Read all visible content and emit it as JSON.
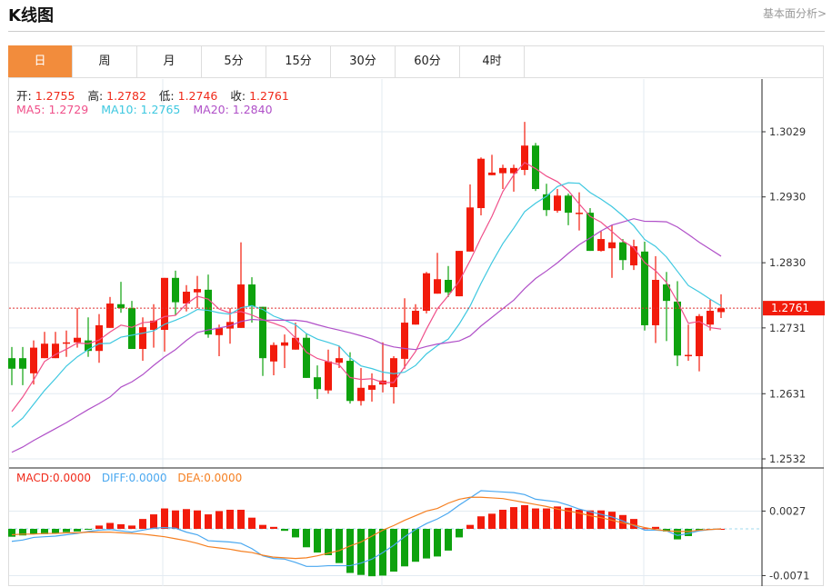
{
  "header": {
    "title": "K线图",
    "link": "基本面分析>"
  },
  "tabs": [
    {
      "label": "日",
      "active": true
    },
    {
      "label": "周"
    },
    {
      "label": "月"
    },
    {
      "label": "5分"
    },
    {
      "label": "15分"
    },
    {
      "label": "30分"
    },
    {
      "label": "60分"
    },
    {
      "label": "4时"
    }
  ],
  "ohlc_info": {
    "open_label": "开:",
    "open": "1.2755",
    "high_label": "高:",
    "high": "1.2782",
    "low_label": "低:",
    "low": "1.2746",
    "close_label": "收:",
    "close": "1.2761"
  },
  "ma_info": {
    "ma5": "MA5: 1.2729",
    "ma10": "MA10: 1.2765",
    "ma20": "MA20: 1.2840"
  },
  "macd_info": {
    "macd": "MACD:0.0000",
    "diff": "DIFF:0.0000",
    "dea": "DEA:0.0000"
  },
  "colors": {
    "up": "#f21b0b",
    "down": "#0ea20e",
    "ma5": "#f0508a",
    "ma10": "#3ec8e0",
    "ma20": "#b050c8",
    "diff": "#4aa8f0",
    "dea": "#f57f20",
    "accent": "#f28c3c"
  },
  "chart_data": [
    {
      "type": "candlestick",
      "y_ticks": [
        "1.3029",
        "1.2930",
        "1.2830",
        "1.2731",
        "1.2631",
        "1.2532"
      ],
      "ylim": [
        1.2532,
        1.3029
      ],
      "current_price": "1.2761",
      "grid": true,
      "candles": [
        [
          1.2685,
          1.2702,
          1.2644,
          1.2669
        ],
        [
          1.2685,
          1.2702,
          1.2644,
          1.2669
        ],
        [
          1.2662,
          1.2712,
          1.2645,
          1.2701
        ],
        [
          1.2685,
          1.2725,
          1.2685,
          1.2707
        ],
        [
          1.2685,
          1.2725,
          1.2685,
          1.2707
        ],
        [
          1.2707,
          1.2727,
          1.2687,
          1.2709
        ],
        [
          1.2709,
          1.2761,
          1.2701,
          1.2716
        ],
        [
          1.2712,
          1.2747,
          1.2687,
          1.2696
        ],
        [
          1.2696,
          1.2752,
          1.2678,
          1.2735
        ],
        [
          1.2731,
          1.2778,
          1.2731,
          1.2768
        ],
        [
          1.2767,
          1.2801,
          1.2754,
          1.2761
        ],
        [
          1.2761,
          1.2772,
          1.2699,
          1.2699
        ],
        [
          1.2699,
          1.2747,
          1.2681,
          1.2732
        ],
        [
          1.2728,
          1.2767,
          1.2701,
          1.2742
        ],
        [
          1.2728,
          1.2807,
          1.2695,
          1.2807
        ],
        [
          1.2807,
          1.2818,
          1.275,
          1.277
        ],
        [
          1.2768,
          1.2796,
          1.2756,
          1.2786
        ],
        [
          1.2785,
          1.281,
          1.2761,
          1.279
        ],
        [
          1.2789,
          1.2812,
          1.2716,
          1.2721
        ],
        [
          1.272,
          1.2736,
          1.2688,
          1.2731
        ],
        [
          1.273,
          1.2761,
          1.2707,
          1.274
        ],
        [
          1.2731,
          1.2861,
          1.2731,
          1.2797
        ],
        [
          1.2797,
          1.2808,
          1.2739,
          1.2764
        ],
        [
          1.2763,
          1.2763,
          1.2658,
          1.2685
        ],
        [
          1.268,
          1.2709,
          1.2659,
          1.2705
        ],
        [
          1.2704,
          1.2721,
          1.267,
          1.2709
        ],
        [
          1.2698,
          1.2739,
          1.2698,
          1.2716
        ],
        [
          1.2716,
          1.2722,
          1.2655,
          1.2655
        ],
        [
          1.2656,
          1.2674,
          1.2623,
          1.2638
        ],
        [
          1.2636,
          1.2698,
          1.2631,
          1.268
        ],
        [
          1.2678,
          1.2704,
          1.267,
          1.2685
        ],
        [
          1.2681,
          1.2694,
          1.2616,
          1.262
        ],
        [
          1.262,
          1.267,
          1.2613,
          1.264
        ],
        [
          1.2637,
          1.2662,
          1.2619,
          1.2644
        ],
        [
          1.2645,
          1.2709,
          1.2633,
          1.2651
        ],
        [
          1.2641,
          1.2688,
          1.2616,
          1.2685
        ],
        [
          1.2684,
          1.2776,
          1.2669,
          1.2739
        ],
        [
          1.2736,
          1.2767,
          1.2736,
          1.2757
        ],
        [
          1.2757,
          1.2816,
          1.2753,
          1.2814
        ],
        [
          1.2783,
          1.2845,
          1.2783,
          1.2805
        ],
        [
          1.2804,
          1.2825,
          1.2778,
          1.2785
        ],
        [
          1.2779,
          1.2848,
          1.2779,
          1.2848
        ],
        [
          1.2847,
          1.2949,
          1.2847,
          1.2914
        ],
        [
          1.2913,
          1.299,
          1.2902,
          1.2988
        ],
        [
          1.2963,
          1.2994,
          1.2963,
          1.2967
        ],
        [
          1.2966,
          1.2979,
          1.2942,
          1.2974
        ],
        [
          1.2966,
          1.2979,
          1.2938,
          1.2974
        ],
        [
          1.2971,
          1.3044,
          1.2963,
          1.3008
        ],
        [
          1.3008,
          1.3012,
          1.2939,
          1.2942
        ],
        [
          1.2934,
          1.295,
          1.2901,
          1.291
        ],
        [
          1.2909,
          1.2942,
          1.2906,
          1.2932
        ],
        [
          1.2932,
          1.2935,
          1.2887,
          1.2906
        ],
        [
          1.2905,
          1.2937,
          1.2879,
          1.2906
        ],
        [
          1.2906,
          1.2913,
          1.2848,
          1.2848
        ],
        [
          1.2848,
          1.2879,
          1.2847,
          1.2866
        ],
        [
          1.2852,
          1.2887,
          1.2807,
          1.2861
        ],
        [
          1.2861,
          1.2866,
          1.2819,
          1.2834
        ],
        [
          1.2826,
          1.2865,
          1.2819,
          1.2855
        ],
        [
          1.2847,
          1.2862,
          1.2727,
          1.2735
        ],
        [
          1.2735,
          1.284,
          1.2708,
          1.2804
        ],
        [
          1.2797,
          1.2816,
          1.2711,
          1.2772
        ],
        [
          1.2771,
          1.2802,
          1.2673,
          1.2689
        ],
        [
          1.2689,
          1.2736,
          1.2681,
          1.269
        ],
        [
          1.2688,
          1.2752,
          1.2665,
          1.2749
        ],
        [
          1.2736,
          1.2774,
          1.2727,
          1.2757
        ],
        [
          1.2755,
          1.2782,
          1.2746,
          1.2761
        ]
      ],
      "ma_leading": {
        "ma5": [
          1.2604,
          1.2626,
          1.2652,
          1.268
        ],
        "ma10": [
          1.258,
          1.2594,
          1.2615,
          1.2636,
          1.2654,
          1.2673,
          1.2687,
          1.2698,
          1.2707
        ],
        "ma20": [
          1.2542,
          1.255,
          1.256,
          1.2569,
          1.2578,
          1.2587,
          1.2597,
          1.2607,
          1.2616,
          1.2626,
          1.2641,
          1.2649,
          1.266,
          1.2674,
          1.2687,
          1.2698,
          1.2712,
          1.2724,
          1.2728
        ]
      }
    },
    {
      "type": "macd",
      "y_ticks": [
        "0.0027",
        "-0.0071"
      ],
      "ylim": [
        -0.0071,
        0.0027
      ],
      "hist": [
        -0.0012,
        -0.001,
        -0.0008,
        -0.0008,
        -0.0007,
        -0.0005,
        -0.0004,
        -0.0001,
        0.0005,
        0.0009,
        0.0007,
        0.0005,
        0.0015,
        0.0022,
        0.0031,
        0.0028,
        0.003,
        0.0028,
        0.0022,
        0.0027,
        0.0029,
        0.0029,
        0.0017,
        0.0006,
        0.0003,
        -0.0003,
        -0.0013,
        -0.0028,
        -0.0036,
        -0.004,
        -0.0052,
        -0.0067,
        -0.007,
        -0.0072,
        -0.0071,
        -0.0065,
        -0.0057,
        -0.005,
        -0.0045,
        -0.0042,
        -0.0033,
        -0.0013,
        0.0006,
        0.0019,
        0.0023,
        0.0029,
        0.0033,
        0.0036,
        0.0031,
        0.0031,
        0.0034,
        0.0032,
        0.0029,
        0.0028,
        0.0028,
        0.0026,
        0.0021,
        0.0015,
        0.0001,
        0.0003,
        -0.0004,
        -0.0016,
        -0.0011,
        -0.0002,
        0.0,
        0.0
      ],
      "diff": [
        -0.0019,
        -0.0017,
        -0.0013,
        -0.0012,
        -0.0011,
        -0.0009,
        -0.0007,
        -0.0004,
        -0.0002,
        -0.0001,
        -0.0003,
        -0.0005,
        -0.0002,
        0.0001,
        0.0002,
        0.0001,
        -0.0005,
        -0.0009,
        -0.0018,
        -0.0019,
        -0.002,
        -0.0022,
        -0.003,
        -0.0041,
        -0.0045,
        -0.0046,
        -0.0051,
        -0.0057,
        -0.0057,
        -0.0056,
        -0.0056,
        -0.0056,
        -0.0052,
        -0.0046,
        -0.0036,
        -0.0025,
        -0.0012,
        -0.0001,
        0.0008,
        0.0015,
        0.0024,
        0.0036,
        0.0047,
        0.0058,
        0.0057,
        0.0056,
        0.0055,
        0.0052,
        0.0045,
        0.0043,
        0.0041,
        0.0036,
        0.003,
        0.0026,
        0.0022,
        0.0018,
        0.0012,
        0.0005,
        -0.0002,
        -0.0002,
        -0.0003,
        -0.001,
        -0.0007,
        -0.0003,
        -0.0001,
        0.0
      ],
      "dea": [
        -0.0009,
        -0.0008,
        -0.0008,
        -0.0007,
        -0.0007,
        -0.0006,
        -0.0006,
        -0.0005,
        -0.0005,
        -0.0005,
        -0.0006,
        -0.0007,
        -0.0008,
        -0.001,
        -0.0012,
        -0.0015,
        -0.0018,
        -0.0022,
        -0.0027,
        -0.0029,
        -0.0031,
        -0.0034,
        -0.0036,
        -0.004,
        -0.0043,
        -0.0044,
        -0.0045,
        -0.0044,
        -0.0041,
        -0.0037,
        -0.0033,
        -0.0026,
        -0.002,
        -0.0011,
        -0.0002,
        0.0005,
        0.0013,
        0.002,
        0.0027,
        0.0031,
        0.0039,
        0.0045,
        0.0048,
        0.0048,
        0.0047,
        0.0046,
        0.0043,
        0.004,
        0.0037,
        0.0034,
        0.003,
        0.0027,
        0.0024,
        0.002,
        0.0017,
        0.0013,
        0.0009,
        0.0006,
        0.0002,
        -0.0001,
        -0.0003,
        -0.0004,
        -0.0004,
        -0.0002,
        -0.0001,
        0.0
      ]
    }
  ]
}
